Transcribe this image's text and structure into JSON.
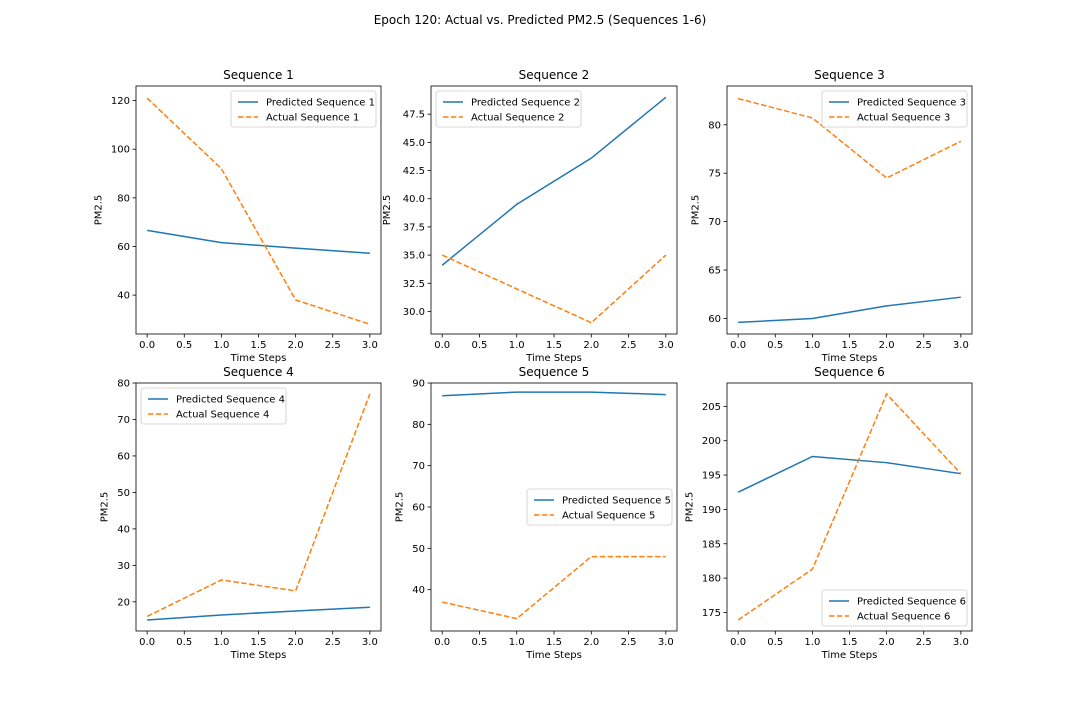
{
  "figure_title": "Epoch 120: Actual vs. Predicted PM2.5 (Sequences 1-6)",
  "colors": {
    "predicted": "#1f77b4",
    "actual": "#ff7f0e",
    "axis": "#000000",
    "background": "#ffffff"
  },
  "chart_data": [
    {
      "type": "line",
      "title": "Sequence 1",
      "xlabel": "Time Steps",
      "ylabel": "PM2.5",
      "x": [
        0,
        1,
        2,
        3
      ],
      "xlim": [
        -0.15,
        3.15
      ],
      "ylim": [
        24,
        126
      ],
      "xticks": [
        "0.0",
        "0.5",
        "1.0",
        "1.5",
        "2.0",
        "2.5",
        "3.0"
      ],
      "yticks": [
        "40",
        "60",
        "80",
        "100",
        "120"
      ],
      "grid": false,
      "legend_position": "upper right",
      "series": [
        {
          "name": "Predicted Sequence 1",
          "style": "solid",
          "values": [
            66.6,
            61.6,
            59.3,
            57.2
          ]
        },
        {
          "name": "Actual Sequence 1",
          "style": "dashed",
          "values": [
            121,
            92,
            38,
            28
          ]
        }
      ]
    },
    {
      "type": "line",
      "title": "Sequence 2",
      "xlabel": "Time Steps",
      "ylabel": "PM2.5",
      "x": [
        0,
        1,
        2,
        3
      ],
      "xlim": [
        -0.15,
        3.15
      ],
      "ylim": [
        28.0,
        50.0
      ],
      "xticks": [
        "0.0",
        "0.5",
        "1.0",
        "1.5",
        "2.0",
        "2.5",
        "3.0"
      ],
      "yticks": [
        "30.0",
        "32.5",
        "35.0",
        "37.5",
        "40.0",
        "42.5",
        "45.0",
        "47.5"
      ],
      "grid": false,
      "legend_position": "upper left",
      "series": [
        {
          "name": "Predicted Sequence 2",
          "style": "solid",
          "values": [
            34.1,
            39.5,
            43.6,
            49.0
          ]
        },
        {
          "name": "Actual Sequence 2",
          "style": "dashed",
          "values": [
            35,
            32,
            29,
            35
          ]
        }
      ]
    },
    {
      "type": "line",
      "title": "Sequence 3",
      "xlabel": "Time Steps",
      "ylabel": "PM2.5",
      "x": [
        0,
        1,
        2,
        3
      ],
      "xlim": [
        -0.15,
        3.15
      ],
      "ylim": [
        58.4,
        84.0
      ],
      "xticks": [
        "0.0",
        "0.5",
        "1.0",
        "1.5",
        "2.0",
        "2.5",
        "3.0"
      ],
      "yticks": [
        "60",
        "65",
        "70",
        "75",
        "80"
      ],
      "grid": false,
      "legend_position": "upper right",
      "series": [
        {
          "name": "Predicted Sequence 3",
          "style": "solid",
          "values": [
            59.6,
            60.0,
            61.3,
            62.2
          ]
        },
        {
          "name": "Actual Sequence 3",
          "style": "dashed",
          "values": [
            82.7,
            80.7,
            74.5,
            78.3
          ]
        }
      ]
    },
    {
      "type": "line",
      "title": "Sequence 4",
      "xlabel": "Time Steps",
      "ylabel": "PM2.5",
      "x": [
        0,
        1,
        2,
        3
      ],
      "xlim": [
        -0.15,
        3.15
      ],
      "ylim": [
        12,
        80
      ],
      "xticks": [
        "0.0",
        "0.5",
        "1.0",
        "1.5",
        "2.0",
        "2.5",
        "3.0"
      ],
      "yticks": [
        "20",
        "30",
        "40",
        "50",
        "60",
        "70",
        "80"
      ],
      "grid": false,
      "legend_position": "upper left",
      "series": [
        {
          "name": "Predicted Sequence 4",
          "style": "solid",
          "values": [
            15.0,
            16.4,
            17.5,
            18.5
          ]
        },
        {
          "name": "Actual Sequence 4",
          "style": "dashed",
          "values": [
            16,
            26,
            23,
            77
          ]
        }
      ]
    },
    {
      "type": "line",
      "title": "Sequence 5",
      "xlabel": "Time Steps",
      "ylabel": "PM2.5",
      "x": [
        0,
        1,
        2,
        3
      ],
      "xlim": [
        -0.15,
        3.15
      ],
      "ylim": [
        30,
        90
      ],
      "xticks": [
        "0.0",
        "0.5",
        "1.0",
        "1.5",
        "2.0",
        "2.5",
        "3.0"
      ],
      "yticks": [
        "40",
        "50",
        "60",
        "70",
        "80",
        "90"
      ],
      "grid": false,
      "legend_position": "center right",
      "series": [
        {
          "name": "Predicted Sequence 5",
          "style": "solid",
          "values": [
            86.9,
            87.8,
            87.8,
            87.2
          ]
        },
        {
          "name": "Actual Sequence 5",
          "style": "dashed",
          "values": [
            37,
            33,
            48,
            48
          ]
        }
      ]
    },
    {
      "type": "line",
      "title": "Sequence 6",
      "xlabel": "Time Steps",
      "ylabel": "PM2.5",
      "x": [
        0,
        1,
        2,
        3
      ],
      "xlim": [
        -0.15,
        3.15
      ],
      "ylim": [
        172.3,
        208.4
      ],
      "xticks": [
        "0.0",
        "0.5",
        "1.0",
        "1.5",
        "2.0",
        "2.5",
        "3.0"
      ],
      "yticks": [
        "175",
        "180",
        "185",
        "190",
        "195",
        "200",
        "205"
      ],
      "grid": false,
      "legend_position": "lower right",
      "series": [
        {
          "name": "Predicted Sequence 6",
          "style": "solid",
          "values": [
            192.5,
            197.7,
            196.8,
            195.2
          ]
        },
        {
          "name": "Actual Sequence 6",
          "style": "dashed",
          "values": [
            173.9,
            181.3,
            206.8,
            195.2
          ]
        }
      ]
    }
  ]
}
